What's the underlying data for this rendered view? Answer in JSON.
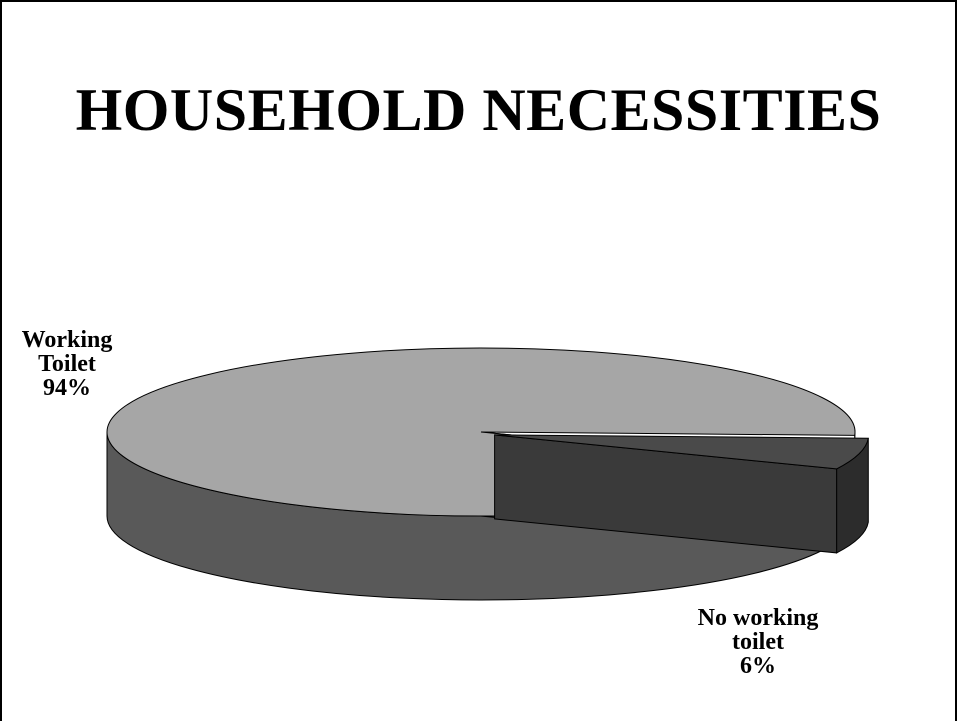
{
  "title": "HOUSEHOLD NECESSITIES",
  "colors": {
    "big_top": "#a6a6a6",
    "big_side": "#595959",
    "small_top": "#4a4a4a",
    "small_side": "#2c2c2c",
    "outline": "#000000"
  },
  "chart_data": {
    "type": "pie",
    "title": "HOUSEHOLD NECESSITIES",
    "style": "3d-exploded",
    "slices": [
      {
        "label_lines": [
          "Working",
          "Toilet"
        ],
        "value": 94,
        "value_label": "94%"
      },
      {
        "label_lines": [
          "No working",
          "toilet"
        ],
        "value": 6,
        "value_label": "6%"
      }
    ]
  }
}
